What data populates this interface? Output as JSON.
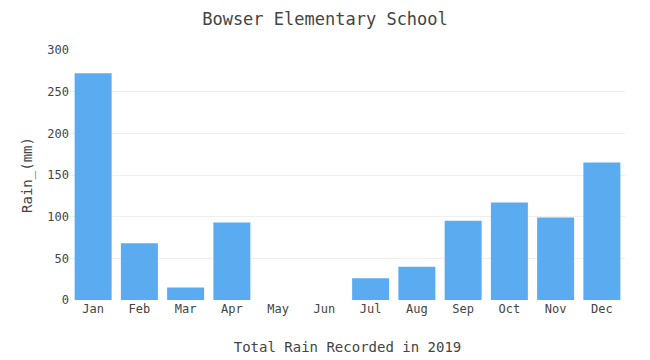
{
  "chart_data": {
    "type": "bar",
    "title": "Bowser Elementary School",
    "xlabel": "Total Rain Recorded in 2019",
    "ylabel": "Rain_(mm)",
    "categories": [
      "Jan",
      "Feb",
      "Mar",
      "Apr",
      "May",
      "Jun",
      "Jul",
      "Aug",
      "Sep",
      "Oct",
      "Nov",
      "Dec"
    ],
    "values": [
      272,
      68,
      15,
      93,
      0,
      0,
      26,
      40,
      95,
      117,
      99,
      165
    ],
    "color": "#5AABF0",
    "ylim": [
      0,
      300
    ],
    "yticks": [
      0,
      50,
      100,
      150,
      200,
      250,
      300
    ],
    "grid": true
  }
}
